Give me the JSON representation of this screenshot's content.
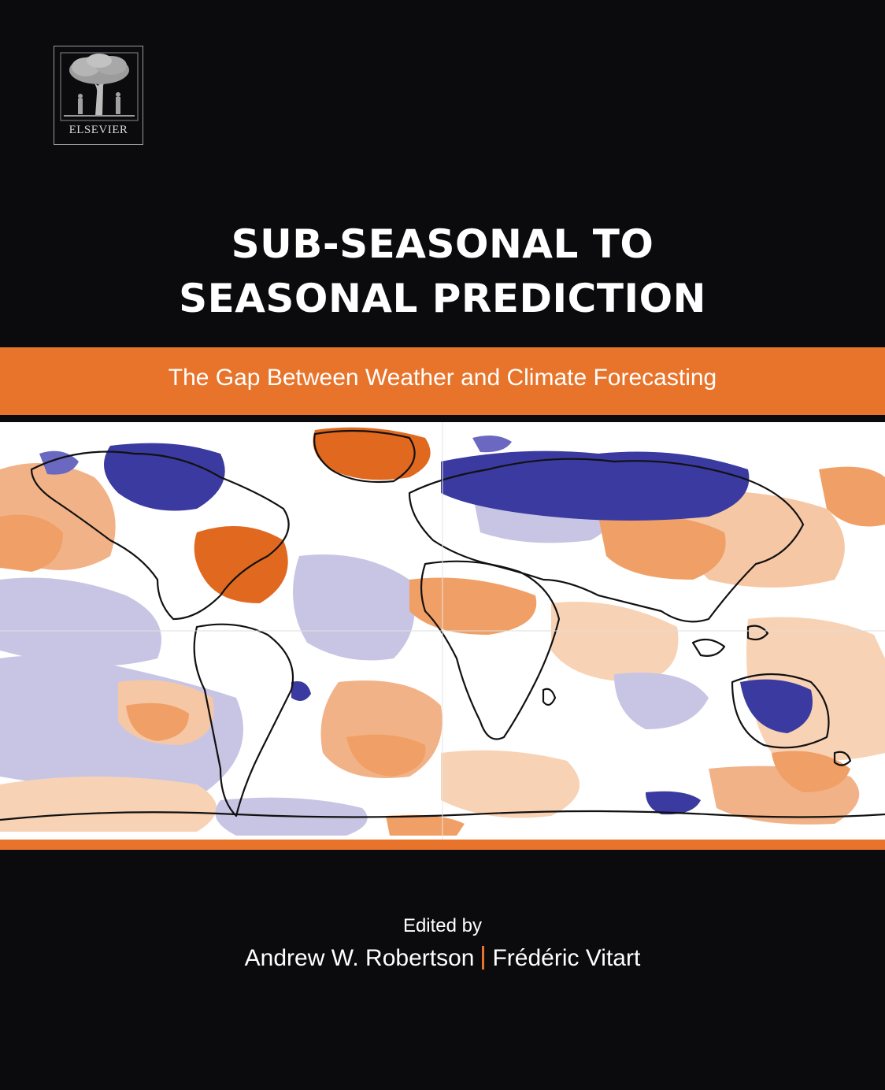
{
  "publisher": {
    "name": "ELSEVIER",
    "logo_icon": "tree-icon"
  },
  "title": {
    "line1": "SUB-SEASONAL TO",
    "line2": "SEASONAL PREDICTION"
  },
  "subtitle": "The Gap Between Weather and Climate Forecasting",
  "credits": {
    "edited_by": "Edited by",
    "editor1": "Andrew W. Robertson",
    "editor2": "Frédéric Vitart"
  },
  "colors": {
    "background": "#0b0b0d",
    "accent_orange": "#e8732a",
    "anomaly_warm_strong": "#e0691f",
    "anomaly_warm_mid": "#f0a066",
    "anomaly_warm_light": "#f8d2b4",
    "anomaly_cool_strong": "#3a3aa0",
    "anomaly_cool_light": "#c4c2e2"
  },
  "cover_image": {
    "description_icon": "world-anomaly-map-icon"
  }
}
